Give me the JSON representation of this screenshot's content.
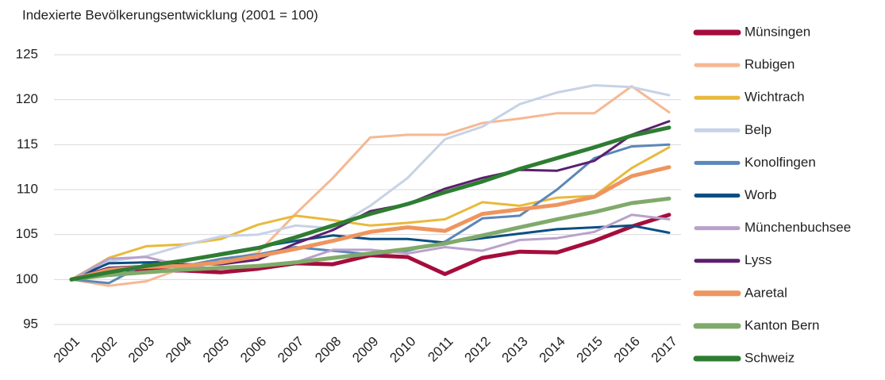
{
  "chart_data": {
    "type": "line",
    "title": "Indexierte Bevölkerungsentwicklung (2001 = 100)",
    "categories": [
      "2001",
      "2002",
      "2003",
      "2004",
      "2005",
      "2006",
      "2007",
      "2008",
      "2009",
      "2010",
      "2011",
      "2012",
      "2013",
      "2014",
      "2015",
      "2016",
      "2017"
    ],
    "ylim": [
      95,
      125
    ],
    "yticks": [
      95,
      100,
      105,
      110,
      115,
      120,
      125
    ],
    "grid": true,
    "legend": "right",
    "series": [
      {
        "name": "Münsingen",
        "color": "#a50d3c",
        "line_width": 5,
        "values": [
          100,
          101.2,
          101.0,
          101.0,
          100.8,
          101.2,
          101.8,
          101.7,
          102.7,
          102.5,
          100.6,
          102.4,
          103.1,
          103.0,
          104.3,
          105.9,
          107.2
        ]
      },
      {
        "name": "Rubigen",
        "color": "#f5b893",
        "line_width": 3,
        "values": [
          100,
          99.3,
          99.8,
          101.3,
          102.0,
          103.0,
          107.3,
          111.3,
          115.8,
          116.1,
          116.1,
          117.4,
          117.9,
          118.5,
          118.5,
          121.5,
          118.6
        ]
      },
      {
        "name": "Wichtrach",
        "color": "#e8b93c",
        "line_width": 3,
        "values": [
          100,
          102.4,
          103.7,
          103.9,
          104.5,
          106.1,
          107.1,
          106.6,
          106.0,
          106.3,
          106.7,
          108.6,
          108.2,
          109.1,
          109.3,
          112.4,
          114.7
        ]
      },
      {
        "name": "Belp",
        "color": "#c7d2e6",
        "line_width": 3,
        "values": [
          100,
          102.0,
          102.6,
          103.8,
          104.8,
          105.0,
          106.0,
          105.7,
          108.2,
          111.3,
          115.6,
          117.0,
          119.5,
          120.8,
          121.6,
          121.4,
          120.5
        ]
      },
      {
        "name": "Konolfingen",
        "color": "#5b87b8",
        "line_width": 3,
        "values": [
          100,
          99.6,
          101.8,
          101.5,
          102.3,
          102.8,
          103.6,
          103.2,
          102.8,
          103.2,
          104.2,
          106.8,
          107.1,
          110.0,
          113.5,
          114.8,
          115.0
        ]
      },
      {
        "name": "Worb",
        "color": "#0b4f82",
        "line_width": 3,
        "values": [
          100,
          101.8,
          101.9,
          102.0,
          102.9,
          103.6,
          104.3,
          104.9,
          104.5,
          104.5,
          104.1,
          104.6,
          105.1,
          105.6,
          105.8,
          106.0,
          105.2
        ]
      },
      {
        "name": "Münchenbuchsee",
        "color": "#b9a1cc",
        "line_width": 3,
        "values": [
          100,
          102.3,
          102.5,
          101.5,
          101.2,
          101.6,
          101.9,
          103.3,
          103.3,
          102.9,
          103.6,
          103.2,
          104.4,
          104.6,
          105.3,
          107.2,
          106.7
        ]
      },
      {
        "name": "Lyss",
        "color": "#5b1f6e",
        "line_width": 3,
        "values": [
          100,
          101.3,
          101.5,
          101.7,
          101.7,
          102.2,
          104.0,
          105.5,
          107.6,
          108.4,
          110.1,
          111.3,
          112.2,
          112.1,
          113.2,
          116.1,
          117.6
        ]
      },
      {
        "name": "Aaretal",
        "color": "#ee955f",
        "line_width": 5,
        "values": [
          100,
          101.1,
          101.4,
          101.5,
          101.9,
          102.6,
          103.4,
          104.3,
          105.3,
          105.8,
          105.4,
          107.3,
          107.8,
          108.3,
          109.2,
          111.5,
          112.5
        ]
      },
      {
        "name": "Kanton Bern",
        "color": "#80aa6b",
        "line_width": 5,
        "values": [
          100,
          100.5,
          100.8,
          101.1,
          101.3,
          101.5,
          101.9,
          102.4,
          102.9,
          103.4,
          104.0,
          104.9,
          105.8,
          106.7,
          107.5,
          108.5,
          109.0
        ]
      },
      {
        "name": "Schweiz",
        "color": "#2e7d32",
        "line_width": 5,
        "values": [
          100,
          100.8,
          101.5,
          102.1,
          102.8,
          103.5,
          104.7,
          106.0,
          107.3,
          108.4,
          109.7,
          110.9,
          112.3,
          113.5,
          114.7,
          116.0,
          116.9
        ]
      }
    ]
  }
}
